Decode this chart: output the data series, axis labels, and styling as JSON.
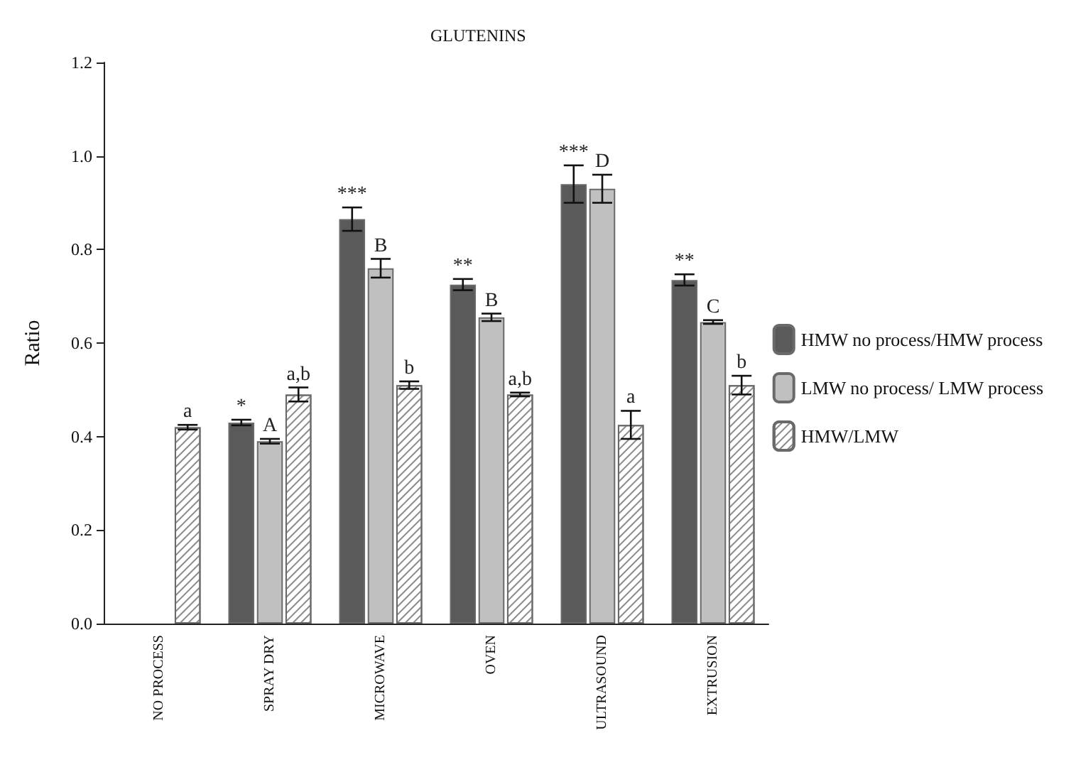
{
  "chart_data": {
    "type": "bar",
    "title": "GLUTENINS",
    "ylabel": "Ratio",
    "categories": [
      "NO PROCESS",
      "SPRAY DRY",
      "MICROWAVE",
      "OVEN",
      "ULTRASOUND",
      "EXTRUSION"
    ],
    "series": [
      {
        "name": "HMW no process/HMW process",
        "color": "#5a5a5a",
        "values": [
          null,
          0.43,
          0.865,
          0.725,
          0.94,
          0.735
        ],
        "errors": [
          null,
          0.006,
          0.025,
          0.012,
          0.04,
          0.012
        ],
        "value_labels": [
          null,
          "*",
          "***",
          "**",
          "***",
          "**"
        ]
      },
      {
        "name": "LMW no process/ LMW process",
        "color": "#c0c0c0",
        "values": [
          null,
          0.39,
          0.76,
          0.655,
          0.93,
          0.645
        ],
        "errors": [
          null,
          0.005,
          0.02,
          0.008,
          0.03,
          0.004
        ],
        "value_labels": [
          null,
          "A",
          "B",
          "B",
          "D",
          "C"
        ]
      },
      {
        "name": "HMW/LMW",
        "color": "#ffffff",
        "values": [
          0.42,
          0.49,
          0.51,
          0.49,
          0.425,
          0.51
        ],
        "errors": [
          0.005,
          0.015,
          0.008,
          0.004,
          0.03,
          0.02
        ],
        "value_labels": [
          "a",
          "a,b",
          "b",
          "a,b",
          "a",
          "b"
        ]
      }
    ],
    "ylim": [
      0,
      1.2
    ],
    "yticks": [
      {
        "value": 0,
        "label": "0.0"
      },
      {
        "value": 0.2,
        "label": "0.2"
      },
      {
        "value": 0.4,
        "label": "0.4"
      },
      {
        "value": 0.6,
        "label": "0.6"
      },
      {
        "value": 0.8,
        "label": "0.8"
      },
      {
        "value": 1,
        "label": "1.0"
      },
      {
        "value": 1.2,
        "label": "1.2"
      }
    ],
    "grid": false,
    "legend": "right"
  }
}
